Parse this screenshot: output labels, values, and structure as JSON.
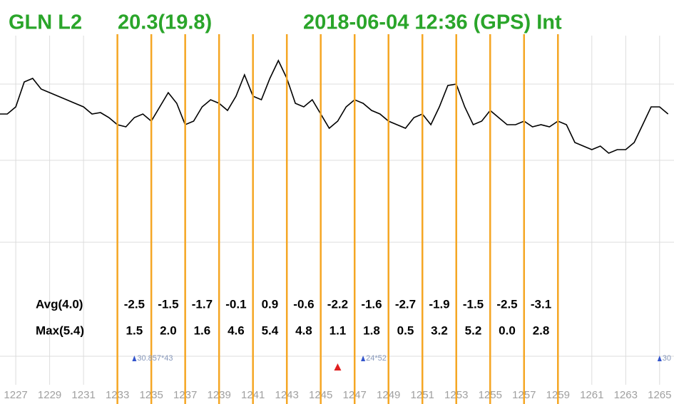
{
  "header": {
    "signal": "GLN L2",
    "level": "20.3(19.8)",
    "timestamp": "2018-06-04 12:36 (GPS) Int"
  },
  "chart_data": {
    "type": "line",
    "x": [
      1226,
      1226.5,
      1227,
      1227.5,
      1228,
      1228.5,
      1229,
      1229.5,
      1230,
      1230.5,
      1231,
      1231.5,
      1232,
      1232.5,
      1233,
      1233.5,
      1234,
      1234.5,
      1235,
      1235.5,
      1236,
      1236.5,
      1237,
      1237.5,
      1238,
      1238.5,
      1239,
      1239.5,
      1240,
      1240.5,
      1241,
      1241.5,
      1242,
      1242.5,
      1243,
      1243.5,
      1244,
      1244.5,
      1245,
      1245.5,
      1246,
      1246.5,
      1247,
      1247.5,
      1248,
      1248.5,
      1249,
      1249.5,
      1250,
      1250.5,
      1251,
      1251.5,
      1252,
      1252.5,
      1253,
      1253.5,
      1254,
      1254.5,
      1255,
      1255.5,
      1256,
      1256.5,
      1257,
      1257.5,
      1258,
      1258.5,
      1259,
      1259.5,
      1260,
      1260.5,
      1261,
      1261.5,
      1262,
      1262.5,
      1263,
      1263.5,
      1264,
      1264.5,
      1265,
      1265.5
    ],
    "values": [
      45,
      45,
      50,
      67.5,
      70,
      62.5,
      60,
      57.5,
      55,
      52.5,
      50,
      45,
      46,
      42.5,
      37.5,
      36,
      42.5,
      45,
      40,
      50,
      60,
      52.5,
      37.5,
      40,
      50,
      55,
      52.5,
      47.5,
      57.5,
      72.5,
      57.5,
      55,
      70,
      82.5,
      70,
      52.5,
      50,
      55,
      45,
      35,
      40,
      50,
      55,
      52.5,
      47.5,
      45,
      40,
      37.5,
      35,
      42.5,
      45,
      37.5,
      50,
      65,
      66,
      50,
      37.5,
      40,
      47.5,
      42.5,
      37.5,
      37.5,
      40,
      36,
      37.5,
      36,
      40,
      37.5,
      25,
      22.5,
      20,
      22.5,
      17.5,
      20,
      20,
      25,
      37.5,
      50,
      50,
      45
    ],
    "color": "#000000",
    "xlim": [
      1226.07,
      1265.85
    ],
    "ylim": [
      0,
      100
    ],
    "xticks": [
      1227,
      1229,
      1231,
      1233,
      1235,
      1237,
      1239,
      1241,
      1243,
      1245,
      1247,
      1249,
      1251,
      1253,
      1255,
      1257,
      1259,
      1261,
      1263,
      1265
    ],
    "interval_lines": [
      1233,
      1235,
      1237,
      1239,
      1241,
      1243,
      1245,
      1247,
      1249,
      1251,
      1253,
      1255,
      1257,
      1259
    ],
    "interval_color": "#f5a623",
    "grid": true
  },
  "stats": {
    "avg_label": "Avg(4.0)",
    "avg": [
      "-2.5",
      "-1.5",
      "-1.7",
      "-0.1",
      "0.9",
      "-0.6",
      "-2.2",
      "-1.6",
      "-2.7",
      "-1.9",
      "-1.5",
      "-2.5",
      "-3.1"
    ],
    "max_label": "Max(5.4)",
    "max": [
      "1.5",
      "2.0",
      "1.6",
      "4.6",
      "5.4",
      "4.8",
      "1.1",
      "1.8",
      "0.5",
      "3.2",
      "5.2",
      "0.0",
      "2.8"
    ]
  },
  "markers": [
    {
      "x": 1234,
      "label": "30.857*43"
    },
    {
      "x": 1247.5,
      "label": "24*52"
    },
    {
      "x": 1265,
      "label": "30"
    }
  ],
  "event": {
    "x": 1246
  }
}
